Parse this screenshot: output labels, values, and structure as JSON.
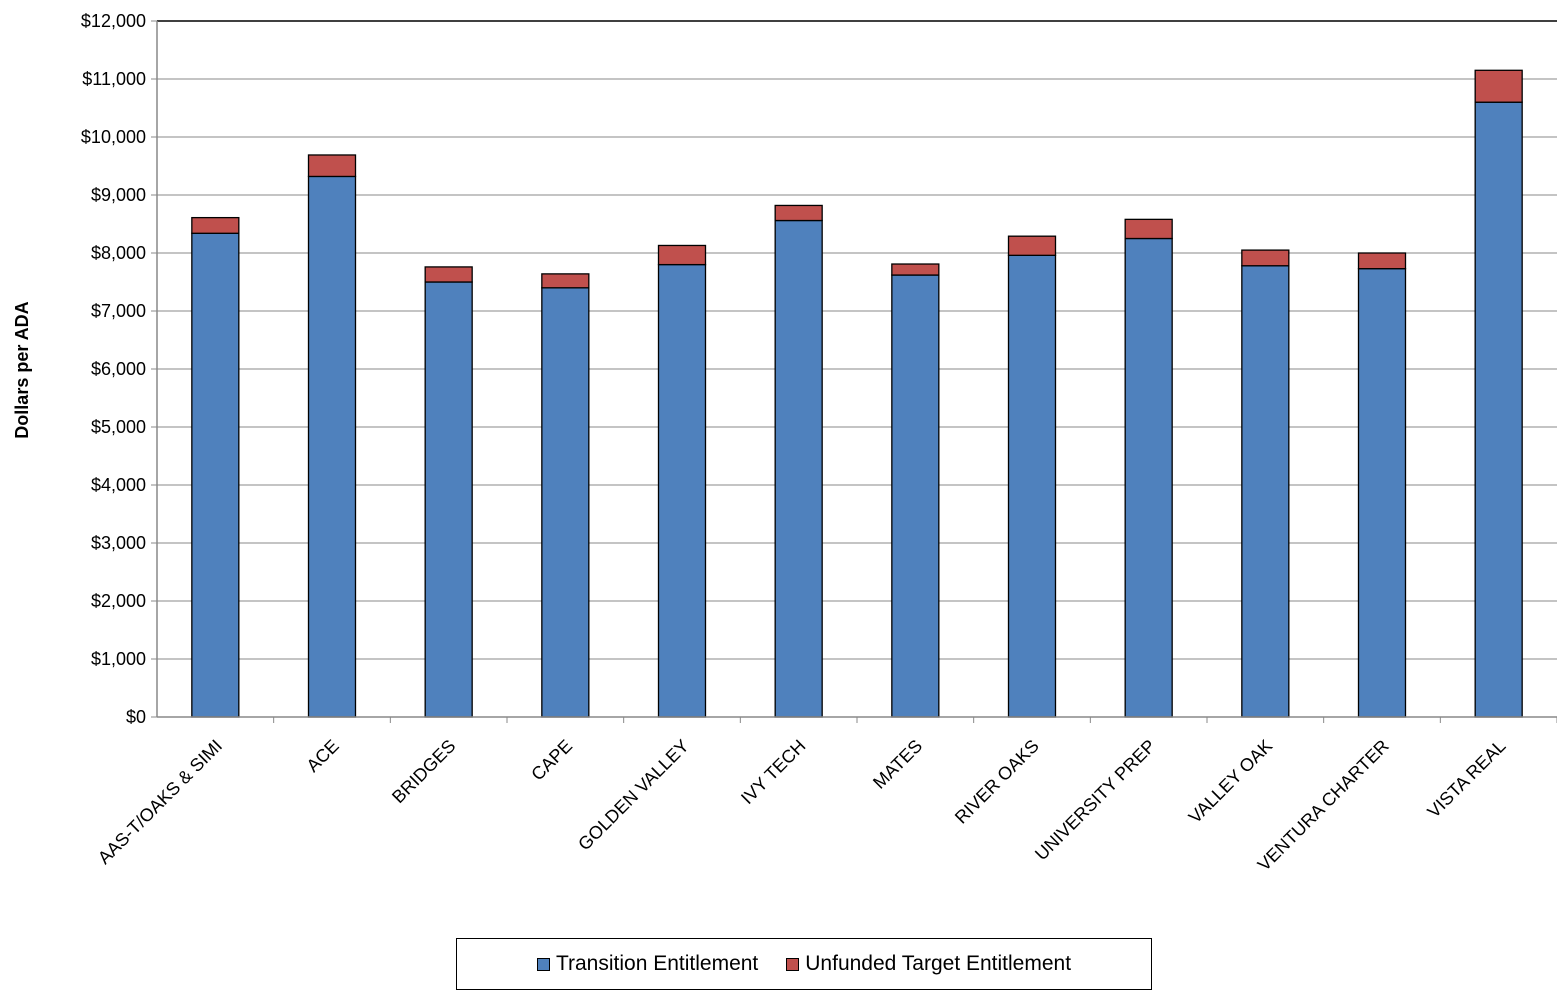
{
  "chart_data": {
    "type": "bar",
    "stacked": true,
    "ylabel": "Dollars per ADA",
    "xlabel": "",
    "ylim": [
      0,
      12000
    ],
    "ytick_step": 1000,
    "ytick_labels": [
      "$0",
      "$1,000",
      "$2,000",
      "$3,000",
      "$4,000",
      "$5,000",
      "$6,000",
      "$7,000",
      "$8,000",
      "$9,000",
      "$10,000",
      "$11,000",
      "$12,000"
    ],
    "grid": true,
    "legend_position": "bottom",
    "categories": [
      "AAS-T/OAKS & SIMI",
      "ACE",
      "BRIDGES",
      "CAPE",
      "GOLDEN VALLEY",
      "IVY TECH",
      "MATES",
      "RIVER OAKS",
      "UNIVERSITY PREP",
      "VALLEY OAK",
      "VENTURA CHARTER",
      "VISTA REAL"
    ],
    "series": [
      {
        "name": "Transition Entitlement",
        "color": "#4F81BD",
        "values": [
          8340,
          9320,
          7500,
          7400,
          7800,
          8560,
          7620,
          7960,
          8250,
          7780,
          7730,
          10600
        ]
      },
      {
        "name": "Unfunded Target Entitlement",
        "color": "#C0504D",
        "values": [
          270,
          370,
          260,
          240,
          330,
          260,
          190,
          330,
          330,
          270,
          270,
          550
        ]
      }
    ]
  }
}
